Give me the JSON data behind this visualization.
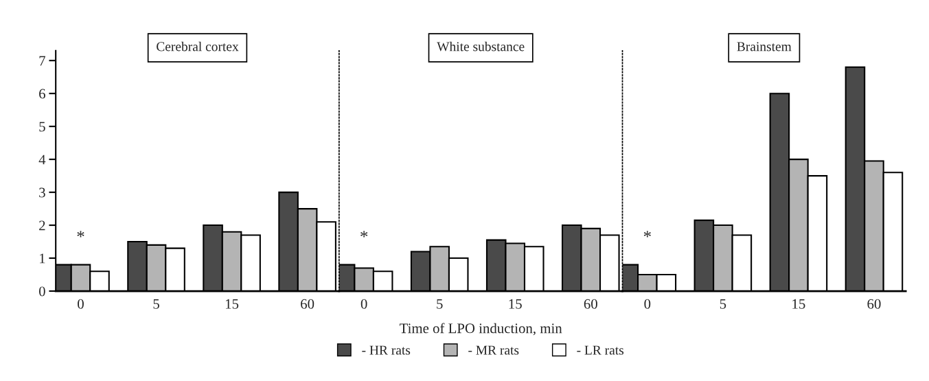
{
  "chart_data": [
    {
      "type": "bar",
      "title": "Cerebral cortex",
      "categories": [
        "0",
        "5",
        "15",
        "60"
      ],
      "ylim": [
        0,
        7.3
      ],
      "yticks": [
        0,
        1,
        2,
        3,
        4,
        5,
        6,
        7
      ],
      "grid": false,
      "legend": false,
      "series": [
        {
          "color": "#4a4a4a",
          "values": [
            0.8,
            1.5,
            2.0,
            3.0
          ]
        },
        {
          "color": "#b4b4b4",
          "values": [
            0.8,
            1.4,
            1.8,
            2.5
          ]
        },
        {
          "color": "#ffffff",
          "values": [
            0.6,
            1.3,
            1.7,
            2.1
          ]
        }
      ],
      "annotations": [
        "*"
      ]
    },
    {
      "type": "bar",
      "title": "White substance",
      "xlabel": "Time of LPO induction, min",
      "categories": [
        "0",
        "5",
        "15",
        "60"
      ],
      "ylim": [
        0,
        7.3
      ],
      "yticks": [
        0,
        1,
        2,
        3,
        4,
        5,
        6,
        7
      ],
      "tick_labels": "x",
      "grid": false,
      "legend": "bottom",
      "series": [
        {
          "name": "- HR rats",
          "color": "#4a4a4a",
          "values": [
            0.8,
            1.2,
            1.55,
            2.0
          ]
        },
        {
          "name": "- MR rats",
          "color": "#b4b4b4",
          "values": [
            0.7,
            1.35,
            1.45,
            1.9
          ]
        },
        {
          "name": "- LR rats",
          "color": "#ffffff",
          "values": [
            0.6,
            1.0,
            1.35,
            1.7
          ]
        }
      ],
      "annotations": [
        "*"
      ]
    },
    {
      "type": "bar",
      "title": "Brainstem",
      "categories": [
        "0",
        "5",
        "15",
        "60"
      ],
      "ylim": [
        0,
        7.3
      ],
      "yticks": [
        0,
        1,
        2,
        3,
        4,
        5,
        6,
        7
      ],
      "tick_labels": "x",
      "grid": false,
      "legend": false,
      "series": [
        {
          "color": "#4a4a4a",
          "values": [
            0.8,
            2.15,
            6.0,
            6.8
          ]
        },
        {
          "color": "#b4b4b4",
          "values": [
            0.5,
            2.0,
            4.0,
            3.95
          ]
        },
        {
          "color": "#ffffff",
          "values": [
            0.5,
            1.7,
            3.5,
            3.6
          ]
        }
      ],
      "annotations": [
        "*"
      ]
    }
  ]
}
